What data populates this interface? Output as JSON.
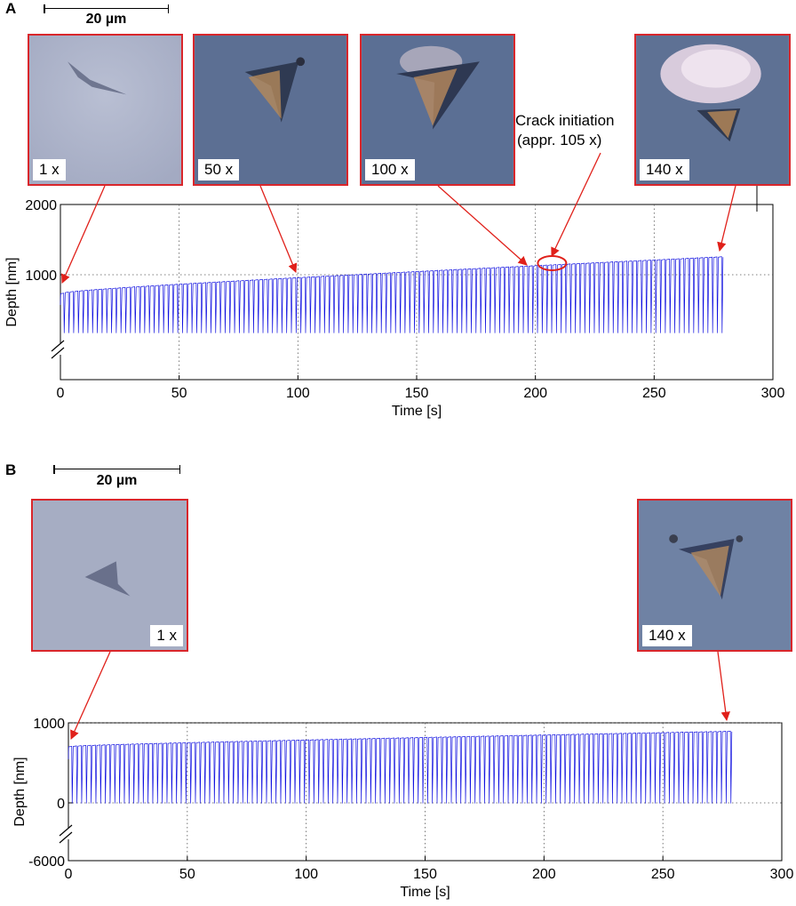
{
  "panels": [
    {
      "letter": "A",
      "scale_bar": "20 µm",
      "micrographs": [
        {
          "label": "1 x",
          "cycle": 1
        },
        {
          "label": "50 x",
          "cycle": 50
        },
        {
          "label": "100 x",
          "cycle": 100
        },
        {
          "label": "140 x",
          "cycle": 140
        }
      ],
      "annotation": {
        "line1": "Crack initiation",
        "line2": "(appr. 105 x)"
      }
    },
    {
      "letter": "B",
      "scale_bar": "20 µm",
      "micrographs": [
        {
          "label": "1 x",
          "cycle": 1
        },
        {
          "label": "140 x",
          "cycle": 140
        }
      ]
    }
  ],
  "colors": {
    "trace": "#1010e0",
    "frame": "#d9262b",
    "arrow": "#e0201a"
  },
  "chart_data": [
    {
      "type": "line",
      "panel": "A",
      "xlabel": "Time [s]",
      "ylabel": "Depth [nm]",
      "xlim": [
        0,
        300
      ],
      "xticks": [
        "0",
        "50",
        "100",
        "150",
        "200",
        "250",
        "300"
      ],
      "yticks": [
        "2000",
        "1000"
      ],
      "axis_break": true,
      "grid": true,
      "cycles": 140,
      "duration_s": 279,
      "max_depth_nm": {
        "start": 730,
        "end": 1250
      },
      "min_depth_nm": 170,
      "crack_initiation_time_s": 207
    },
    {
      "type": "line",
      "panel": "B",
      "xlabel": "Time [s]",
      "ylabel": "Depth [nm]",
      "xlim": [
        0,
        300
      ],
      "xticks": [
        "0",
        "50",
        "100",
        "150",
        "200",
        "250",
        "300"
      ],
      "yticks": [
        "1000",
        "0",
        "-6000"
      ],
      "axis_break": true,
      "grid": true,
      "cycles": 140,
      "duration_s": 279,
      "max_depth_nm": {
        "start": 700,
        "end": 890
      },
      "min_depth_nm": -100
    }
  ]
}
